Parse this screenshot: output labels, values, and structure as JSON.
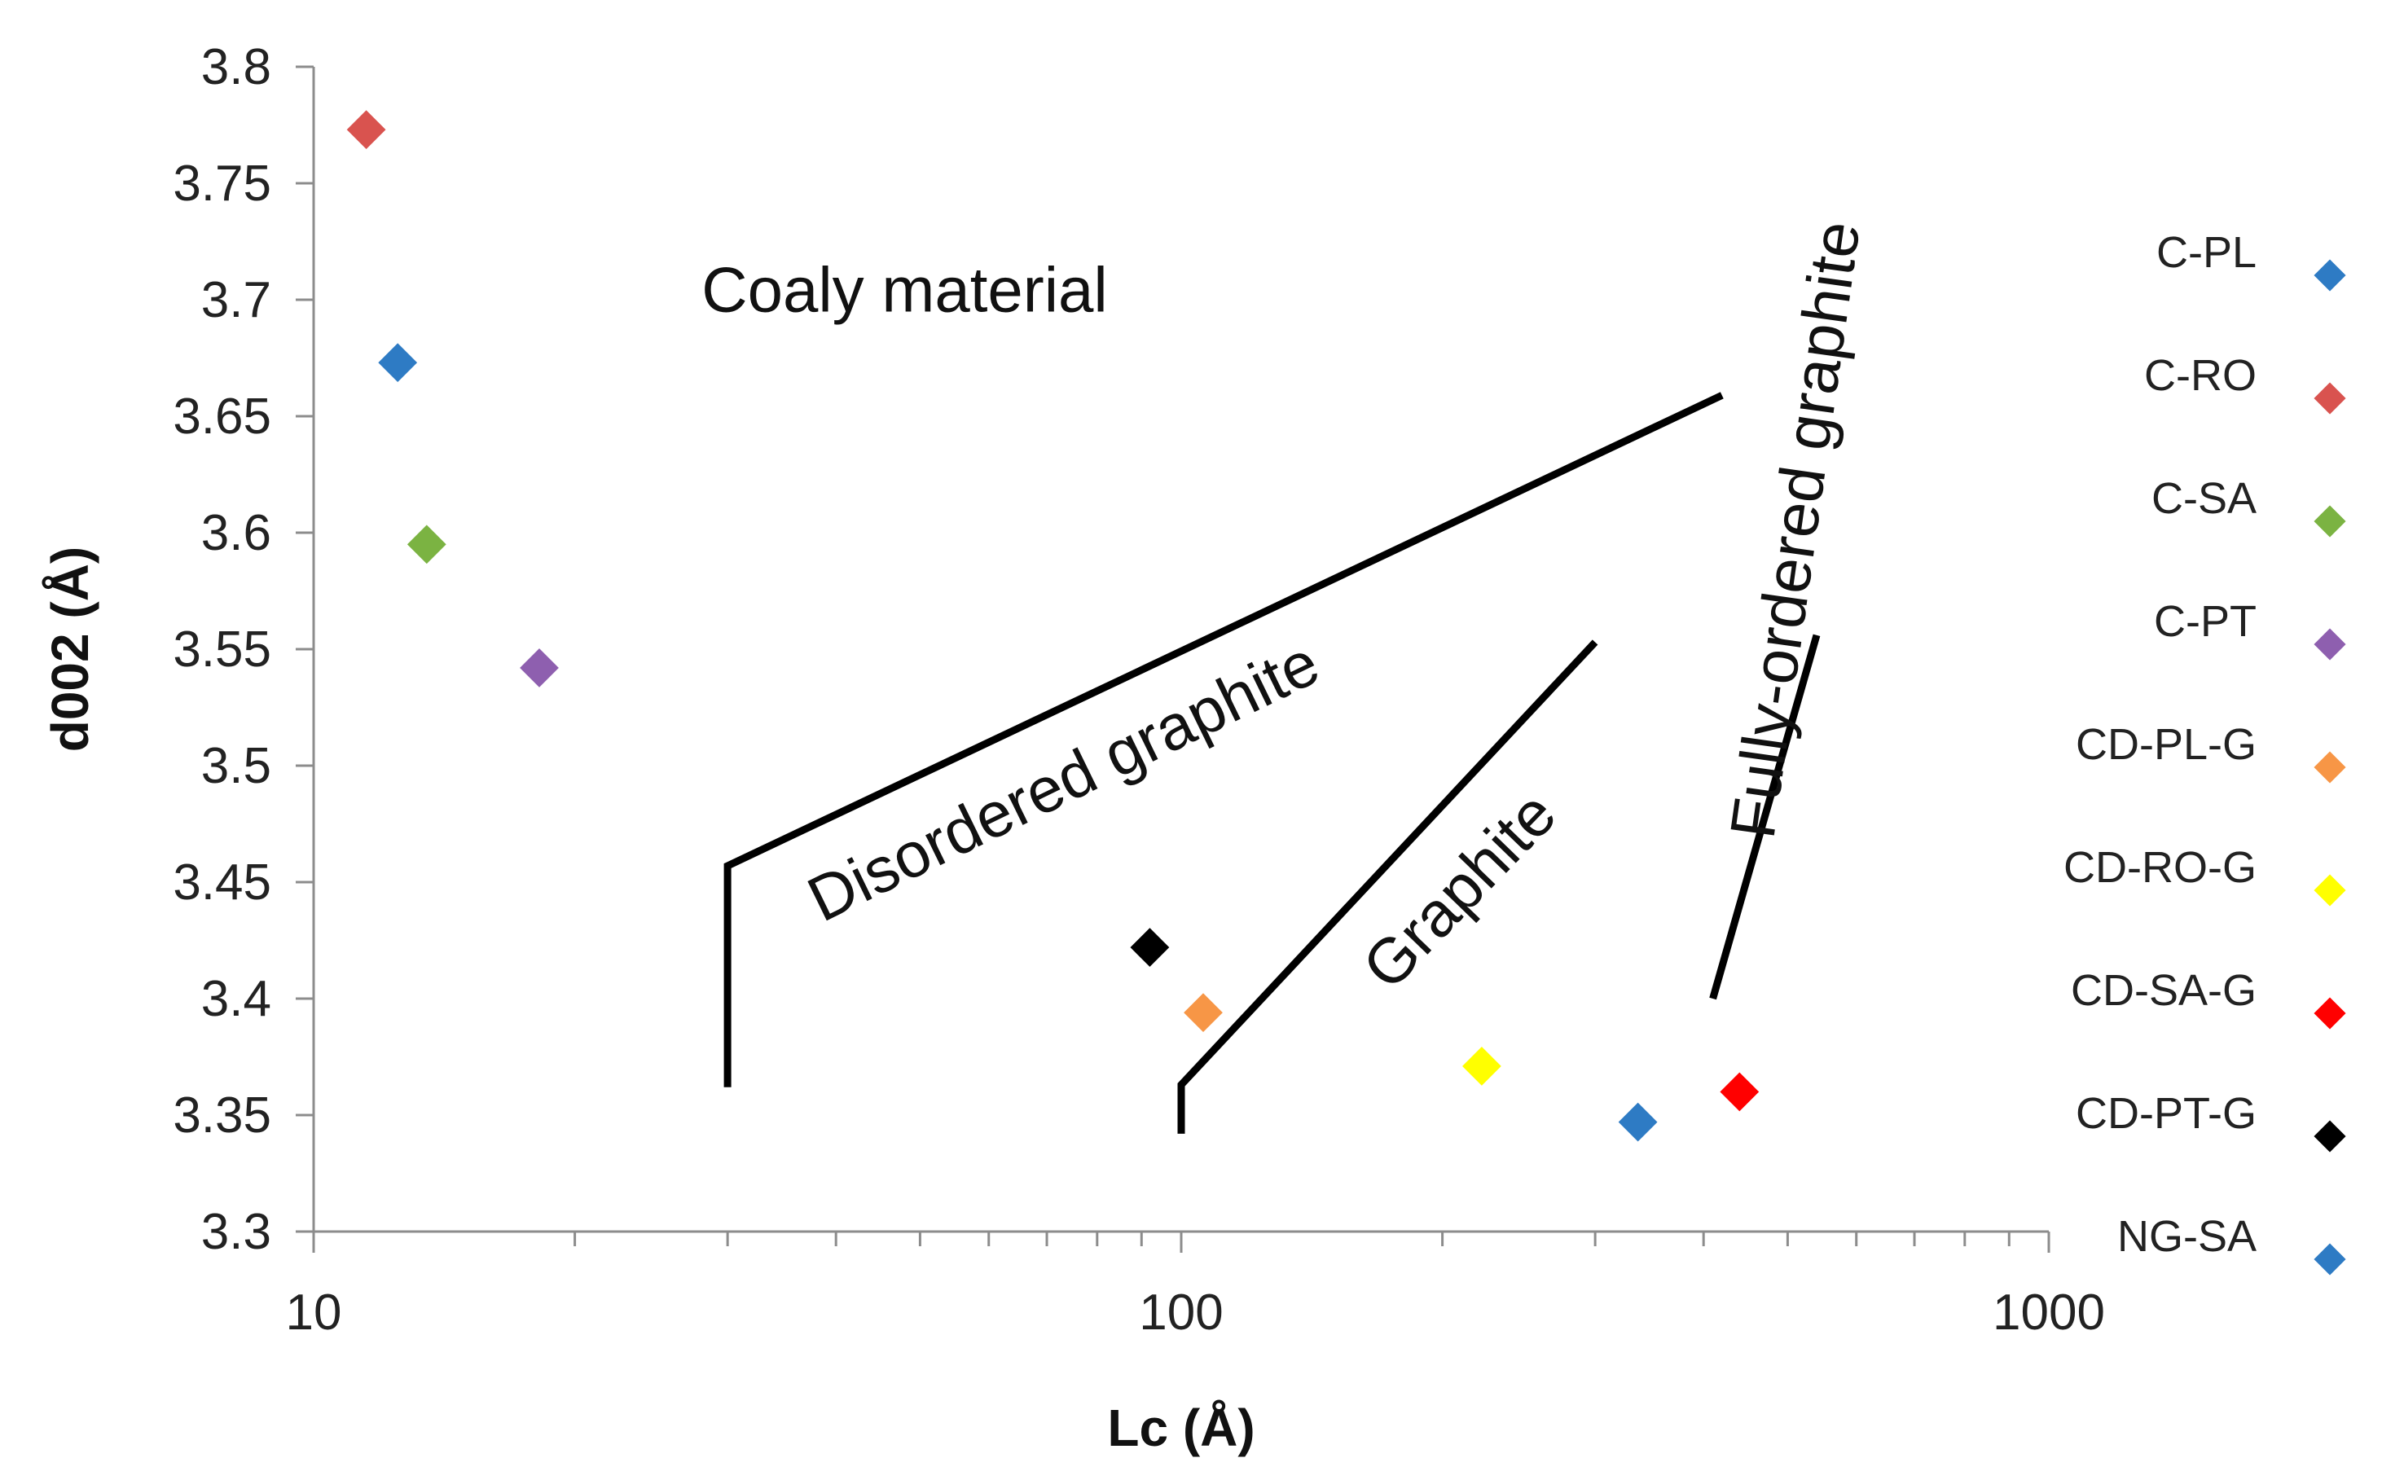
{
  "chart_data": {
    "type": "scatter",
    "title": "",
    "xlabel": "Lc (Å)",
    "ylabel": "d002 (Å)",
    "xscale": "log",
    "xlim": [
      10,
      1000
    ],
    "ylim": [
      3.3,
      3.8
    ],
    "x_ticks": [
      "10",
      "100",
      "1000"
    ],
    "y_ticks": [
      "3.3",
      "3.35",
      "3.4",
      "3.45",
      "3.5",
      "3.55",
      "3.6",
      "3.65",
      "3.7",
      "3.75",
      "3.8"
    ],
    "grid": false,
    "legend_position": "right",
    "series": [
      {
        "name": "C-PL",
        "color": "#2E7BC4",
        "x": 12.5,
        "y": 3.673
      },
      {
        "name": "C-RO",
        "color": "#D9534F",
        "x": 11.5,
        "y": 3.773
      },
      {
        "name": "C-SA",
        "color": "#7BB342",
        "x": 13.5,
        "y": 3.595
      },
      {
        "name": "C-PT",
        "color": "#8E5FAF",
        "x": 18.2,
        "y": 3.542
      },
      {
        "name": "CD-PL-G",
        "color": "#F79646",
        "x": 106,
        "y": 3.394
      },
      {
        "name": "CD-RO-G",
        "color": "#FFFF00",
        "x": 222,
        "y": 3.371
      },
      {
        "name": "CD-SA-G",
        "color": "#FF0000",
        "x": 440,
        "y": 3.36
      },
      {
        "name": "CD-PT-G",
        "color": "#000000",
        "x": 92,
        "y": 3.422
      },
      {
        "name": "NG-SA",
        "color": "#2E7BC4",
        "x": 336,
        "y": 3.347
      }
    ],
    "boundary_lines": [
      {
        "points": [
          [
            30,
            3.362
          ],
          [
            30,
            3.457
          ],
          [
            420,
            3.659
          ]
        ]
      },
      {
        "points": [
          [
            100,
            3.342
          ],
          [
            100,
            3.363
          ],
          [
            300,
            3.553
          ]
        ]
      },
      {
        "points": [
          [
            410,
            3.4
          ],
          [
            540,
            3.556
          ]
        ]
      }
    ],
    "annotations": [
      {
        "text": "Coaly material",
        "x": 48,
        "y": 3.695,
        "rotation": 0
      },
      {
        "text": "Disordered graphite",
        "x": 75,
        "y": 3.485,
        "rotation": -26
      },
      {
        "text": "Graphite",
        "x": 218,
        "y": 3.44,
        "rotation": -46
      },
      {
        "text": "Fully-ordered  graphite",
        "x": 540,
        "y": 3.6,
        "rotation": -82
      }
    ]
  }
}
